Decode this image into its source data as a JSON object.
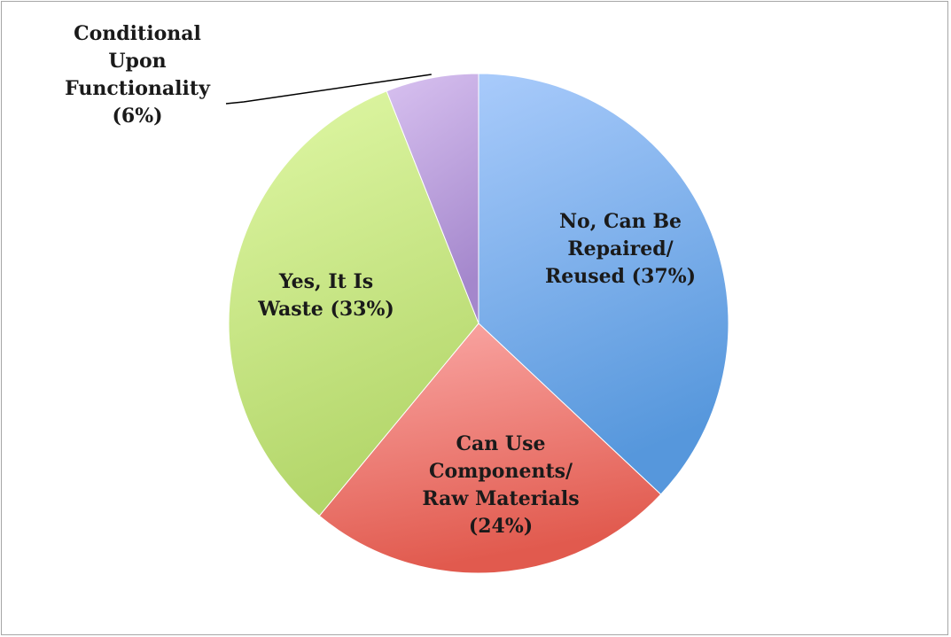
{
  "chart_data": {
    "type": "pie",
    "title": "",
    "start_angle_deg": 0,
    "direction": "clockwise",
    "slices": [
      {
        "name": "No, Can Be Repaired/ Reused",
        "value": 37,
        "label_lines": [
          "No, Can Be",
          "Repaired/",
          "Reused (37%)"
        ],
        "color_light": "#a9cbfb",
        "color_dark": "#5697dc"
      },
      {
        "name": "Can Use Components/ Raw Materials",
        "value": 24,
        "label_lines": [
          "Can Use",
          "Components/",
          "Raw Materials",
          "(24%)"
        ],
        "color_light": "#fbaaa8",
        "color_dark": "#e15a4e"
      },
      {
        "name": "Yes, It Is Waste",
        "value": 33,
        "label_lines": [
          "Yes, It Is",
          "Waste (33%)"
        ],
        "color_light": "#e0f8a6",
        "color_dark": "#b3d66a"
      },
      {
        "name": "Conditional Upon Functionality",
        "value": 6,
        "label_lines": [
          "Conditional",
          "Upon",
          "Functionality",
          "(6%)"
        ],
        "color_light": "#d8c1f0",
        "color_dark": "#a487cc"
      }
    ],
    "legend": "none",
    "leader_line_on": "Conditional Upon Functionality"
  }
}
